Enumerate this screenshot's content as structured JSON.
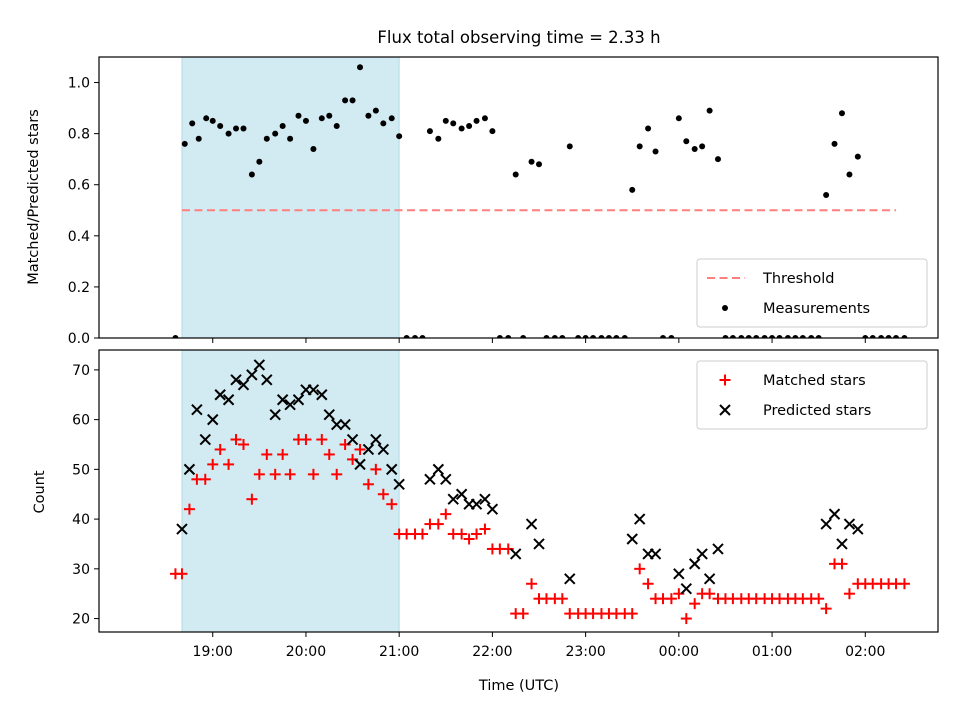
{
  "chart_data": [
    {
      "type": "scatter",
      "title": "Flux total observing time = 2.33 h",
      "ylabel": "Matched/Predicted stars",
      "xlabel": "",
      "x_unit": "hours_utc_wrapping_past_24",
      "xlim": [
        17.78,
        26.78
      ],
      "ylim": [
        0,
        1.1
      ],
      "yticks": [
        "0.0",
        "0.2",
        "0.4",
        "0.6",
        "0.8",
        "1.0"
      ],
      "xticks": [
        {
          "x": 19,
          "label": "19:00"
        },
        {
          "x": 20,
          "label": "20:00"
        },
        {
          "x": 21,
          "label": "21:00"
        },
        {
          "x": 22,
          "label": "22:00"
        },
        {
          "x": 23,
          "label": "23:00"
        },
        {
          "x": 24,
          "label": "00:00"
        },
        {
          "x": 25,
          "label": "01:00"
        },
        {
          "x": 26,
          "label": "02:00"
        }
      ],
      "show_xtick_labels": false,
      "shaded_interval": [
        18.67,
        21.0
      ],
      "shade_color": "#add8e6",
      "threshold": {
        "name": "Threshold",
        "value": 0.5,
        "x_range": [
          18.67,
          26.33
        ],
        "color": "#ff7f7f",
        "style": "dashed"
      },
      "legend_location": "lower right",
      "series": [
        {
          "name": "Measurements",
          "marker": "dot",
          "color": "#000000",
          "points": [
            [
              18.6,
              0.0
            ],
            [
              18.7,
              0.76
            ],
            [
              18.78,
              0.84
            ],
            [
              18.85,
              0.78
            ],
            [
              18.93,
              0.86
            ],
            [
              19.0,
              0.85
            ],
            [
              19.08,
              0.83
            ],
            [
              19.17,
              0.8
            ],
            [
              19.25,
              0.82
            ],
            [
              19.33,
              0.82
            ],
            [
              19.42,
              0.64
            ],
            [
              19.5,
              0.69
            ],
            [
              19.58,
              0.78
            ],
            [
              19.67,
              0.8
            ],
            [
              19.75,
              0.83
            ],
            [
              19.83,
              0.78
            ],
            [
              19.92,
              0.87
            ],
            [
              20.0,
              0.85
            ],
            [
              20.08,
              0.74
            ],
            [
              20.17,
              0.86
            ],
            [
              20.25,
              0.87
            ],
            [
              20.33,
              0.83
            ],
            [
              20.42,
              0.93
            ],
            [
              20.5,
              0.93
            ],
            [
              20.58,
              1.06
            ],
            [
              20.67,
              0.87
            ],
            [
              20.75,
              0.89
            ],
            [
              20.83,
              0.84
            ],
            [
              20.92,
              0.86
            ],
            [
              21.0,
              0.79
            ],
            [
              21.08,
              0.0
            ],
            [
              21.17,
              0.0
            ],
            [
              21.25,
              0.0
            ],
            [
              21.33,
              0.81
            ],
            [
              21.42,
              0.78
            ],
            [
              21.5,
              0.85
            ],
            [
              21.58,
              0.84
            ],
            [
              21.67,
              0.82
            ],
            [
              21.75,
              0.83
            ],
            [
              21.83,
              0.85
            ],
            [
              21.92,
              0.86
            ],
            [
              22.0,
              0.81
            ],
            [
              22.08,
              0.0
            ],
            [
              22.17,
              0.0
            ],
            [
              22.25,
              0.64
            ],
            [
              22.33,
              0.0
            ],
            [
              22.42,
              0.69
            ],
            [
              22.5,
              0.68
            ],
            [
              22.58,
              0.0
            ],
            [
              22.67,
              0.0
            ],
            [
              22.75,
              0.0
            ],
            [
              22.83,
              0.75
            ],
            [
              22.92,
              0.0
            ],
            [
              23.0,
              0.0
            ],
            [
              23.08,
              0.0
            ],
            [
              23.17,
              0.0
            ],
            [
              23.25,
              0.0
            ],
            [
              23.33,
              0.0
            ],
            [
              23.42,
              0.0
            ],
            [
              23.5,
              0.58
            ],
            [
              23.58,
              0.75
            ],
            [
              23.67,
              0.82
            ],
            [
              23.75,
              0.73
            ],
            [
              23.83,
              0.0
            ],
            [
              23.92,
              0.0
            ],
            [
              24.0,
              0.86
            ],
            [
              24.08,
              0.77
            ],
            [
              24.17,
              0.74
            ],
            [
              24.25,
              0.75
            ],
            [
              24.33,
              0.89
            ],
            [
              24.42,
              0.7
            ],
            [
              24.5,
              0.0
            ],
            [
              24.58,
              0.0
            ],
            [
              24.67,
              0.0
            ],
            [
              24.75,
              0.0
            ],
            [
              24.83,
              0.0
            ],
            [
              24.92,
              0.0
            ],
            [
              25.0,
              0.0
            ],
            [
              25.08,
              0.0
            ],
            [
              25.17,
              0.0
            ],
            [
              25.25,
              0.0
            ],
            [
              25.33,
              0.0
            ],
            [
              25.42,
              0.0
            ],
            [
              25.5,
              0.0
            ],
            [
              25.58,
              0.56
            ],
            [
              25.67,
              0.76
            ],
            [
              25.75,
              0.88
            ],
            [
              25.83,
              0.64
            ],
            [
              25.92,
              0.71
            ],
            [
              26.0,
              0.0
            ],
            [
              26.08,
              0.0
            ],
            [
              26.17,
              0.0
            ],
            [
              26.25,
              0.0
            ],
            [
              26.33,
              0.0
            ],
            [
              26.42,
              0.0
            ]
          ]
        }
      ]
    },
    {
      "type": "scatter",
      "title": "",
      "ylabel": "Count",
      "xlabel": "Time (UTC)",
      "x_unit": "hours_utc_wrapping_past_24",
      "xlim": [
        17.78,
        26.78
      ],
      "ylim": [
        17.3,
        74.0
      ],
      "yticks": [
        "20",
        "30",
        "40",
        "50",
        "60",
        "70"
      ],
      "xticks": [
        {
          "x": 19,
          "label": "19:00"
        },
        {
          "x": 20,
          "label": "20:00"
        },
        {
          "x": 21,
          "label": "21:00"
        },
        {
          "x": 22,
          "label": "22:00"
        },
        {
          "x": 23,
          "label": "23:00"
        },
        {
          "x": 24,
          "label": "00:00"
        },
        {
          "x": 25,
          "label": "01:00"
        },
        {
          "x": 26,
          "label": "02:00"
        }
      ],
      "show_xtick_labels": true,
      "shaded_interval": [
        18.67,
        21.0
      ],
      "shade_color": "#add8e6",
      "legend_location": "upper right",
      "series": [
        {
          "name": "Matched stars",
          "marker": "plus",
          "color": "#ff0000",
          "points": [
            [
              18.6,
              29
            ],
            [
              18.67,
              29
            ],
            [
              18.75,
              42
            ],
            [
              18.83,
              48
            ],
            [
              18.92,
              48
            ],
            [
              19.0,
              51
            ],
            [
              19.08,
              54
            ],
            [
              19.17,
              51
            ],
            [
              19.25,
              56
            ],
            [
              19.33,
              55
            ],
            [
              19.42,
              44
            ],
            [
              19.5,
              49
            ],
            [
              19.58,
              53
            ],
            [
              19.67,
              49
            ],
            [
              19.75,
              53
            ],
            [
              19.83,
              49
            ],
            [
              19.92,
              56
            ],
            [
              20.0,
              56
            ],
            [
              20.08,
              49
            ],
            [
              20.17,
              56
            ],
            [
              20.25,
              53
            ],
            [
              20.33,
              49
            ],
            [
              20.42,
              55
            ],
            [
              20.5,
              52
            ],
            [
              20.58,
              54
            ],
            [
              20.67,
              47
            ],
            [
              20.75,
              50
            ],
            [
              20.83,
              45
            ],
            [
              20.92,
              43
            ],
            [
              21.0,
              37
            ],
            [
              21.08,
              37
            ],
            [
              21.17,
              37
            ],
            [
              21.25,
              37
            ],
            [
              21.33,
              39
            ],
            [
              21.42,
              39
            ],
            [
              21.5,
              41
            ],
            [
              21.58,
              37
            ],
            [
              21.67,
              37
            ],
            [
              21.75,
              36
            ],
            [
              21.83,
              37
            ],
            [
              21.92,
              38
            ],
            [
              22.0,
              34
            ],
            [
              22.08,
              34
            ],
            [
              22.17,
              34
            ],
            [
              22.25,
              21
            ],
            [
              22.33,
              21
            ],
            [
              22.42,
              27
            ],
            [
              22.5,
              24
            ],
            [
              22.58,
              24
            ],
            [
              22.67,
              24
            ],
            [
              22.75,
              24
            ],
            [
              22.83,
              21
            ],
            [
              22.92,
              21
            ],
            [
              23.0,
              21
            ],
            [
              23.08,
              21
            ],
            [
              23.17,
              21
            ],
            [
              23.25,
              21
            ],
            [
              23.33,
              21
            ],
            [
              23.42,
              21
            ],
            [
              23.5,
              21
            ],
            [
              23.58,
              30
            ],
            [
              23.67,
              27
            ],
            [
              23.75,
              24
            ],
            [
              23.83,
              24
            ],
            [
              23.92,
              24
            ],
            [
              24.0,
              25
            ],
            [
              24.08,
              20
            ],
            [
              24.17,
              23
            ],
            [
              24.25,
              25
            ],
            [
              24.33,
              25
            ],
            [
              24.42,
              24
            ],
            [
              24.5,
              24
            ],
            [
              24.58,
              24
            ],
            [
              24.67,
              24
            ],
            [
              24.75,
              24
            ],
            [
              24.83,
              24
            ],
            [
              24.92,
              24
            ],
            [
              25.0,
              24
            ],
            [
              25.08,
              24
            ],
            [
              25.17,
              24
            ],
            [
              25.25,
              24
            ],
            [
              25.33,
              24
            ],
            [
              25.42,
              24
            ],
            [
              25.5,
              24
            ],
            [
              25.58,
              22
            ],
            [
              25.67,
              31
            ],
            [
              25.75,
              31
            ],
            [
              25.83,
              25
            ],
            [
              25.92,
              27
            ],
            [
              26.0,
              27
            ],
            [
              26.08,
              27
            ],
            [
              26.17,
              27
            ],
            [
              26.25,
              27
            ],
            [
              26.33,
              27
            ],
            [
              26.42,
              27
            ]
          ]
        },
        {
          "name": "Predicted stars",
          "marker": "x",
          "color": "#000000",
          "points": [
            [
              18.67,
              38
            ],
            [
              18.75,
              50
            ],
            [
              18.83,
              62
            ],
            [
              18.92,
              56
            ],
            [
              19.0,
              60
            ],
            [
              19.08,
              65
            ],
            [
              19.17,
              64
            ],
            [
              19.25,
              68
            ],
            [
              19.33,
              67
            ],
            [
              19.42,
              69
            ],
            [
              19.5,
              71
            ],
            [
              19.58,
              68
            ],
            [
              19.67,
              61
            ],
            [
              19.75,
              64
            ],
            [
              19.83,
              63
            ],
            [
              19.92,
              64
            ],
            [
              20.0,
              66
            ],
            [
              20.08,
              66
            ],
            [
              20.17,
              65
            ],
            [
              20.25,
              61
            ],
            [
              20.33,
              59
            ],
            [
              20.42,
              59
            ],
            [
              20.5,
              56
            ],
            [
              20.58,
              51
            ],
            [
              20.67,
              54
            ],
            [
              20.75,
              56
            ],
            [
              20.83,
              54
            ],
            [
              20.92,
              50
            ],
            [
              21.0,
              47
            ],
            [
              21.33,
              48
            ],
            [
              21.42,
              50
            ],
            [
              21.5,
              48
            ],
            [
              21.58,
              44
            ],
            [
              21.67,
              45
            ],
            [
              21.75,
              43
            ],
            [
              21.83,
              43
            ],
            [
              21.92,
              44
            ],
            [
              22.0,
              42
            ],
            [
              22.25,
              33
            ],
            [
              22.42,
              39
            ],
            [
              22.5,
              35
            ],
            [
              22.83,
              28
            ],
            [
              23.5,
              36
            ],
            [
              23.58,
              40
            ],
            [
              23.67,
              33
            ],
            [
              23.75,
              33
            ],
            [
              24.0,
              29
            ],
            [
              24.08,
              26
            ],
            [
              24.17,
              31
            ],
            [
              24.25,
              33
            ],
            [
              24.33,
              28
            ],
            [
              24.42,
              34
            ],
            [
              25.58,
              39
            ],
            [
              25.67,
              41
            ],
            [
              25.75,
              35
            ],
            [
              25.83,
              39
            ],
            [
              25.92,
              38
            ]
          ]
        }
      ]
    }
  ]
}
